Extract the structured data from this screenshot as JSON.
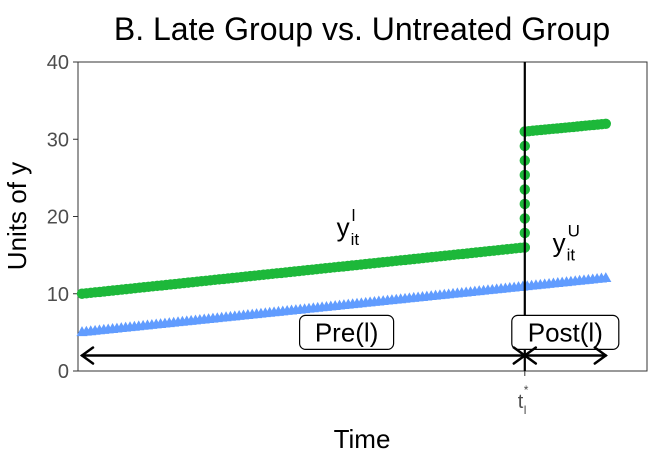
{
  "chart_data": {
    "type": "scatter",
    "title": "B. Late Group vs. Untreated Group",
    "xlabel": "Time",
    "ylabel": "Units of y",
    "xlim": [
      0,
      1
    ],
    "ylim": [
      0,
      40
    ],
    "y_ticks": [
      0,
      10,
      20,
      30,
      40
    ],
    "x_tick": {
      "main": "t",
      "sub": "l",
      "sup": "*",
      "value": 0.82
    },
    "grid": false,
    "series": [
      {
        "color": "#1db83a",
        "marker": "circle",
        "segments": [
          {
            "x": [
              0.0,
              0.82
            ],
            "y": [
              10,
              16
            ],
            "n": 100
          },
          {
            "x": [
              0.82,
              0.82
            ],
            "y": [
              16,
              31
            ],
            "n": 8
          },
          {
            "x": [
              0.82,
              0.97
            ],
            "y": [
              31,
              32
            ],
            "n": 20
          }
        ]
      },
      {
        "color": "#619cff",
        "marker": "triangle",
        "segments": [
          {
            "x": [
              0.0,
              0.97
            ],
            "y": [
              5,
              12
            ],
            "n": 120
          }
        ]
      }
    ],
    "vline": {
      "x": 0.82,
      "color": "#000000"
    },
    "labels": [
      {
        "main": "y",
        "sub": "it",
        "sup": "l",
        "x": 0.49,
        "y": 17.5
      },
      {
        "main": "y",
        "sub": "it",
        "sup": "U",
        "x": 0.89,
        "y": 15.5
      }
    ],
    "boxes": [
      {
        "text": "Pre(l)",
        "x": 0.49,
        "y": 5
      },
      {
        "text": "Post(l)",
        "x": 0.895,
        "y": 5
      }
    ],
    "arrows": [
      {
        "x": [
          0.0,
          0.82
        ],
        "y": 2
      },
      {
        "x": [
          0.82,
          0.97
        ],
        "y": 2
      }
    ]
  }
}
